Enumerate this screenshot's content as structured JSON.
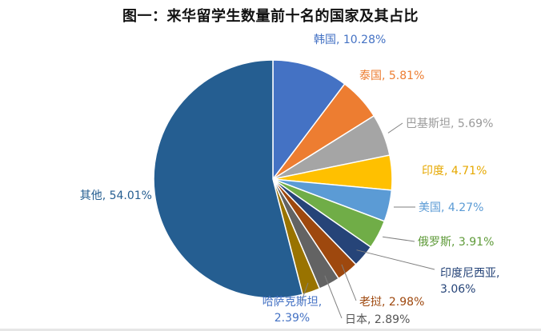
{
  "chart_data": {
    "type": "pie",
    "title": "图一：来华留学生数量前十名的国家及其占比",
    "legend": "none",
    "slices": [
      {
        "label": "韩国",
        "value": 10.28,
        "display": "韩国, 10.28%",
        "color": "#4472C4",
        "label_color": "#4472C4"
      },
      {
        "label": "泰国",
        "value": 5.81,
        "display": "泰国, 5.81%",
        "color": "#ED7D31",
        "label_color": "#ED7D31"
      },
      {
        "label": "巴基斯坦",
        "value": 5.69,
        "display": "巴基斯坦, 5.69%",
        "color": "#A5A5A5",
        "label_color": "#9A9A9A"
      },
      {
        "label": "印度",
        "value": 4.71,
        "display": "印度, 4.71%",
        "color": "#FFC000",
        "label_color": "#E6A800"
      },
      {
        "label": "美国",
        "value": 4.27,
        "display": "美国, 4.27%",
        "color": "#5B9BD5",
        "label_color": "#5B9BD5"
      },
      {
        "label": "俄罗斯",
        "value": 3.91,
        "display": "俄罗斯, 3.91%",
        "color": "#70AD47",
        "label_color": "#5E9A38"
      },
      {
        "label": "印度尼西亚",
        "value": 3.06,
        "display": "印度尼西亚, 3.06%",
        "display_lines": [
          "印度尼西亚,",
          "3.06%"
        ],
        "color": "#264478",
        "label_color": "#264478"
      },
      {
        "label": "老挝",
        "value": 2.98,
        "display": "老挝, 2.98%",
        "color": "#9E480E",
        "label_color": "#9E480E"
      },
      {
        "label": "日本",
        "value": 2.89,
        "display": "日本, 2.89%",
        "color": "#636363",
        "label_color": "#555555"
      },
      {
        "label": "哈萨克斯坦",
        "value": 2.39,
        "display": "哈萨克斯坦, 2.39%",
        "display_lines": [
          "哈萨克斯坦,",
          "2.39%"
        ],
        "color": "#997300",
        "label_color": "#4472C4"
      },
      {
        "label": "其他",
        "value": 54.01,
        "display": "其他, 54.01%",
        "color": "#255E91",
        "label_color": "#255E91"
      }
    ]
  }
}
